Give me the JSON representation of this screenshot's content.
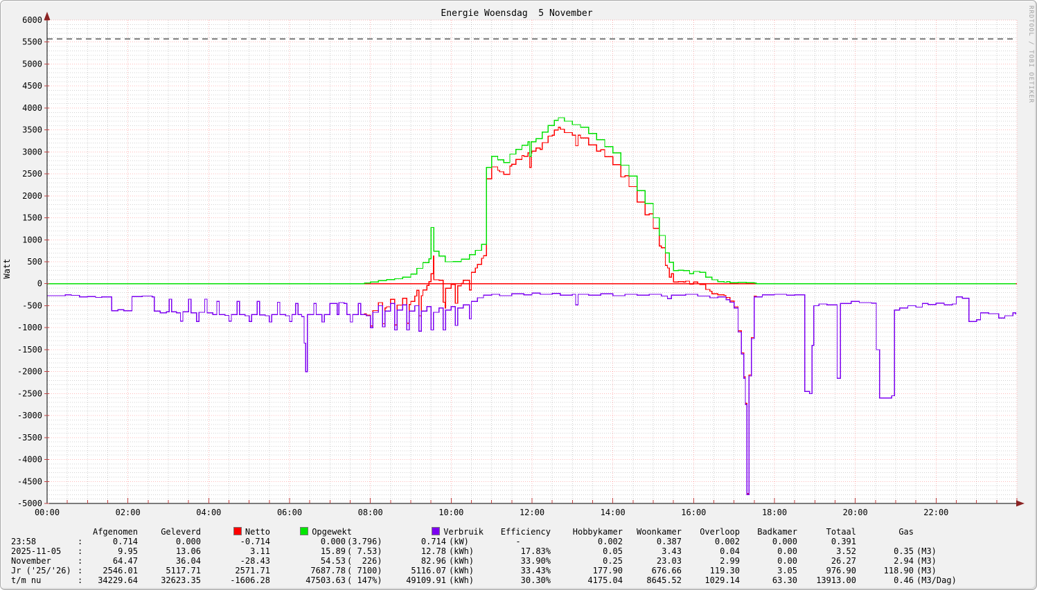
{
  "title": "Energie Woensdag  5 November",
  "watermark": "RRDTOOL / TOBI OETIKER",
  "chart_data": {
    "type": "line",
    "title": "Energie Woensdag  5 November",
    "xlabel": "",
    "ylabel": "Watt",
    "ylim": [
      -5000,
      6000
    ],
    "xlim_hours": [
      0,
      24
    ],
    "grid": true,
    "legend_position": "bottom",
    "y_tick_values": [
      -5000,
      -4500,
      -4000,
      -3500,
      -3000,
      -2500,
      -2000,
      -1500,
      -1000,
      -500,
      0,
      500,
      1000,
      1500,
      2000,
      2500,
      3000,
      3500,
      4000,
      4500,
      5000,
      5500,
      6000
    ],
    "x_tick_hours": [
      0,
      2,
      4,
      6,
      8,
      10,
      12,
      14,
      16,
      18,
      20,
      22
    ],
    "x_tick_labels": [
      "00:00",
      "02:00",
      "04:00",
      "06:00",
      "08:00",
      "10:00",
      "12:00",
      "14:00",
      "16:00",
      "18:00",
      "20:00",
      "22:00"
    ],
    "hrules": {
      "zero": {
        "value": 0,
        "color": "#ff0000"
      },
      "limit": {
        "value": 5570,
        "color": "#555555",
        "style": "dashed"
      }
    },
    "series": [
      {
        "name": "Opgewekt",
        "color": "#00e000",
        "render": "step",
        "points": [
          [
            0,
            0
          ],
          [
            7.8,
            0
          ],
          [
            7.85,
            15
          ],
          [
            8.0,
            40
          ],
          [
            8.2,
            70
          ],
          [
            8.4,
            95
          ],
          [
            8.6,
            115
          ],
          [
            8.8,
            150
          ],
          [
            9.0,
            220
          ],
          [
            9.15,
            350
          ],
          [
            9.3,
            480
          ],
          [
            9.45,
            570
          ],
          [
            9.5,
            1280
          ],
          [
            9.57,
            740
          ],
          [
            9.7,
            630
          ],
          [
            9.85,
            500
          ],
          [
            10.05,
            505
          ],
          [
            10.25,
            560
          ],
          [
            10.45,
            660
          ],
          [
            10.6,
            760
          ],
          [
            10.75,
            900
          ],
          [
            10.87,
            2650
          ],
          [
            11.0,
            2900
          ],
          [
            11.15,
            2820
          ],
          [
            11.3,
            2760
          ],
          [
            11.45,
            2950
          ],
          [
            11.6,
            3060
          ],
          [
            11.75,
            3150
          ],
          [
            11.9,
            3230
          ],
          [
            11.94,
            2900
          ],
          [
            11.98,
            3230
          ],
          [
            12.1,
            3300
          ],
          [
            12.25,
            3450
          ],
          [
            12.4,
            3600
          ],
          [
            12.55,
            3720
          ],
          [
            12.65,
            3780
          ],
          [
            12.8,
            3700
          ],
          [
            13.0,
            3620
          ],
          [
            13.2,
            3560
          ],
          [
            13.4,
            3420
          ],
          [
            13.6,
            3280
          ],
          [
            13.8,
            3120
          ],
          [
            14.0,
            2980
          ],
          [
            14.2,
            2700
          ],
          [
            14.4,
            2450
          ],
          [
            14.6,
            2120
          ],
          [
            14.8,
            1830
          ],
          [
            15.0,
            1500
          ],
          [
            15.15,
            1100
          ],
          [
            15.3,
            700
          ],
          [
            15.4,
            490
          ],
          [
            15.5,
            300
          ],
          [
            15.62,
            310
          ],
          [
            15.75,
            300
          ],
          [
            15.9,
            230
          ],
          [
            16.0,
            280
          ],
          [
            16.15,
            260
          ],
          [
            16.3,
            150
          ],
          [
            16.45,
            90
          ],
          [
            16.6,
            50
          ],
          [
            16.75,
            35
          ],
          [
            16.82,
            50
          ],
          [
            16.9,
            25
          ],
          [
            17.1,
            30
          ],
          [
            17.3,
            25
          ],
          [
            17.5,
            15
          ],
          [
            17.55,
            0
          ],
          [
            23.97,
            0
          ]
        ]
      },
      {
        "name": "Verbruik",
        "color": "#7c00f0",
        "render": "step",
        "points": [
          [
            0,
            -270
          ],
          [
            0.45,
            -250
          ],
          [
            0.6,
            -265
          ],
          [
            0.8,
            -300
          ],
          [
            1.0,
            -290
          ],
          [
            1.2,
            -310
          ],
          [
            1.35,
            -300
          ],
          [
            1.6,
            -615
          ],
          [
            1.75,
            -590
          ],
          [
            1.9,
            -615
          ],
          [
            2.1,
            -290
          ],
          [
            2.35,
            -280
          ],
          [
            2.6,
            -300
          ],
          [
            2.65,
            -620
          ],
          [
            2.8,
            -660
          ],
          [
            2.95,
            -640
          ],
          [
            3.02,
            -350
          ],
          [
            3.08,
            -640
          ],
          [
            3.2,
            -660
          ],
          [
            3.3,
            -850
          ],
          [
            3.36,
            -640
          ],
          [
            3.5,
            -350
          ],
          [
            3.56,
            -660
          ],
          [
            3.7,
            -860
          ],
          [
            3.76,
            -650
          ],
          [
            3.9,
            -350
          ],
          [
            3.96,
            -660
          ],
          [
            4.1,
            -700
          ],
          [
            4.2,
            -400
          ],
          [
            4.26,
            -700
          ],
          [
            4.4,
            -720
          ],
          [
            4.5,
            -850
          ],
          [
            4.56,
            -700
          ],
          [
            4.7,
            -400
          ],
          [
            4.76,
            -700
          ],
          [
            4.9,
            -730
          ],
          [
            5.0,
            -860
          ],
          [
            5.06,
            -700
          ],
          [
            5.2,
            -400
          ],
          [
            5.26,
            -710
          ],
          [
            5.4,
            -730
          ],
          [
            5.5,
            -870
          ],
          [
            5.56,
            -700
          ],
          [
            5.7,
            -420
          ],
          [
            5.76,
            -700
          ],
          [
            5.9,
            -730
          ],
          [
            6.0,
            -860
          ],
          [
            6.06,
            -700
          ],
          [
            6.15,
            -450
          ],
          [
            6.21,
            -700
          ],
          [
            6.3,
            -750
          ],
          [
            6.36,
            -1350
          ],
          [
            6.4,
            -2000
          ],
          [
            6.44,
            -700
          ],
          [
            6.6,
            -450
          ],
          [
            6.66,
            -700
          ],
          [
            6.8,
            -870
          ],
          [
            6.86,
            -700
          ],
          [
            7.0,
            -450
          ],
          [
            7.18,
            -700
          ],
          [
            7.22,
            -430
          ],
          [
            7.35,
            -450
          ],
          [
            7.42,
            -700
          ],
          [
            7.5,
            -870
          ],
          [
            7.56,
            -700
          ],
          [
            7.7,
            -450
          ],
          [
            7.76,
            -700
          ],
          [
            7.9,
            -730
          ],
          [
            8.0,
            -1000
          ],
          [
            8.06,
            -650
          ],
          [
            8.2,
            -500
          ],
          [
            8.3,
            -980
          ],
          [
            8.36,
            -620
          ],
          [
            8.5,
            -450
          ],
          [
            8.6,
            -1050
          ],
          [
            8.66,
            -600
          ],
          [
            8.8,
            -480
          ],
          [
            8.9,
            -1050
          ],
          [
            8.96,
            -620
          ],
          [
            9.1,
            -500
          ],
          [
            9.2,
            -1080
          ],
          [
            9.26,
            -620
          ],
          [
            9.4,
            -520
          ],
          [
            9.5,
            -1050
          ],
          [
            9.56,
            -650
          ],
          [
            9.7,
            -550
          ],
          [
            9.8,
            -1050
          ],
          [
            9.86,
            -600
          ],
          [
            10.0,
            -520
          ],
          [
            10.1,
            -950
          ],
          [
            10.16,
            -550
          ],
          [
            10.3,
            -480
          ],
          [
            10.45,
            -800
          ],
          [
            10.5,
            -400
          ],
          [
            10.65,
            -320
          ],
          [
            10.8,
            -260
          ],
          [
            11.0,
            -240
          ],
          [
            11.2,
            -270
          ],
          [
            11.5,
            -230
          ],
          [
            11.8,
            -250
          ],
          [
            12.0,
            -210
          ],
          [
            12.2,
            -240
          ],
          [
            12.5,
            -220
          ],
          [
            12.7,
            -260
          ],
          [
            13.0,
            -240
          ],
          [
            13.08,
            -480
          ],
          [
            13.14,
            -240
          ],
          [
            13.4,
            -260
          ],
          [
            13.7,
            -230
          ],
          [
            14.0,
            -270
          ],
          [
            14.3,
            -240
          ],
          [
            14.6,
            -260
          ],
          [
            14.9,
            -240
          ],
          [
            15.2,
            -280
          ],
          [
            15.35,
            -340
          ],
          [
            15.45,
            -260
          ],
          [
            15.8,
            -240
          ],
          [
            16.1,
            -280
          ],
          [
            16.4,
            -320
          ],
          [
            16.6,
            -300
          ],
          [
            16.8,
            -360
          ],
          [
            16.9,
            -420
          ],
          [
            17.0,
            -550
          ],
          [
            17.1,
            -1100
          ],
          [
            17.18,
            -1600
          ],
          [
            17.24,
            -2150
          ],
          [
            17.28,
            -2750
          ],
          [
            17.32,
            -4800
          ],
          [
            17.37,
            -2100
          ],
          [
            17.43,
            -1250
          ],
          [
            17.5,
            -300
          ],
          [
            17.7,
            -250
          ],
          [
            18.0,
            -240
          ],
          [
            18.3,
            -260
          ],
          [
            18.5,
            -250
          ],
          [
            18.75,
            -2450
          ],
          [
            18.87,
            -2500
          ],
          [
            18.93,
            -1400
          ],
          [
            18.97,
            -500
          ],
          [
            19.1,
            -460
          ],
          [
            19.3,
            -480
          ],
          [
            19.55,
            -2150
          ],
          [
            19.63,
            -450
          ],
          [
            19.9,
            -400
          ],
          [
            20.1,
            -430
          ],
          [
            20.4,
            -440
          ],
          [
            20.52,
            -1500
          ],
          [
            20.6,
            -2600
          ],
          [
            20.9,
            -2550
          ],
          [
            20.97,
            -600
          ],
          [
            21.1,
            -550
          ],
          [
            21.3,
            -500
          ],
          [
            21.5,
            -530
          ],
          [
            21.66,
            -450
          ],
          [
            21.8,
            -470
          ],
          [
            22.0,
            -440
          ],
          [
            22.2,
            -480
          ],
          [
            22.4,
            -460
          ],
          [
            22.5,
            -300
          ],
          [
            22.65,
            -330
          ],
          [
            22.81,
            -860
          ],
          [
            23.0,
            -820
          ],
          [
            23.1,
            -660
          ],
          [
            23.3,
            -680
          ],
          [
            23.55,
            -780
          ],
          [
            23.7,
            -730
          ],
          [
            23.9,
            -660
          ],
          [
            23.97,
            -700
          ]
        ]
      },
      {
        "name": "Netto",
        "color": "#ff0000",
        "render": "step",
        "derived": "Opgewekt + Verbruik"
      }
    ]
  },
  "table": {
    "headers": {
      "afgenomen": "Afgenomen",
      "geleverd": "Geleverd",
      "netto": "Netto",
      "opgewekt": "Opgewekt",
      "verbruik": "Verbruik",
      "efficiency": "Efficiency",
      "hobbykamer": "Hobbykamer",
      "woonkamer": "Woonkamer",
      "overloop": "Overloop",
      "badkamer": "Badkamer",
      "totaal": "Totaal",
      "gas": "Gas"
    },
    "legend_colors": {
      "netto": "#ff0000",
      "opgewekt": "#00e600",
      "verbruik": "#7c00f0"
    },
    "rows": [
      {
        "label": "23:58",
        "colon": ":",
        "afgenomen": "0.714",
        "geleverd": "0.000",
        "netto": "-0.714",
        "opgewekt": "0.000",
        "opgewekt_paren": "(3.796)",
        "verbruik": "0.714",
        "verbruik_unit": "(kW)",
        "efficiency": "-      ",
        "hobbykamer": "0.002",
        "woonkamer": "0.387",
        "overloop": "0.002",
        "badkamer": "0.000",
        "totaal": "0.391",
        "gas": "",
        "gas_unit": ""
      },
      {
        "label": "2025-11-05",
        "colon": ":",
        "afgenomen": "9.95",
        "geleverd": "13.06",
        "netto": "3.11",
        "opgewekt": "15.89",
        "opgewekt_paren": "( 7.53)",
        "verbruik": "12.78",
        "verbruik_unit": "(kWh)",
        "efficiency": "17.83%",
        "hobbykamer": "0.05",
        "woonkamer": "3.43",
        "overloop": "0.04",
        "badkamer": "0.00",
        "totaal": "3.52",
        "gas": "0.35",
        "gas_unit": "(M3)"
      },
      {
        "label": "November",
        "colon": ":",
        "afgenomen": "64.47",
        "geleverd": "36.04",
        "netto": "-28.43",
        "opgewekt": "54.53",
        "opgewekt_paren": "(  226)",
        "verbruik": "82.96",
        "verbruik_unit": "(kWh)",
        "efficiency": "33.90%",
        "hobbykamer": "0.25",
        "woonkamer": "23.03",
        "overloop": "2.99",
        "badkamer": "0.00",
        "totaal": "26.27",
        "gas": "2.94",
        "gas_unit": "(M3)"
      },
      {
        "label": "Jr ('25/'26)",
        "colon": ":",
        "afgenomen": "2546.01",
        "geleverd": "5117.71",
        "netto": "2571.71",
        "opgewekt": "7687.78",
        "opgewekt_paren": "( 7100)",
        "verbruik": "5116.07",
        "verbruik_unit": "(kWh)",
        "efficiency": "33.43%",
        "hobbykamer": "177.90",
        "woonkamer": "676.66",
        "overloop": "119.30",
        "badkamer": "3.05",
        "totaal": "976.90",
        "gas": "118.90",
        "gas_unit": "(M3)"
      },
      {
        "label": "t/m nu",
        "colon": ":",
        "afgenomen": "34229.64",
        "geleverd": "32623.35",
        "netto": "-1606.28",
        "opgewekt": "47503.63",
        "opgewekt_paren": "( 147%)",
        "verbruik": "49109.91",
        "verbruik_unit": "(kWh)",
        "efficiency": "30.30%",
        "hobbykamer": "4175.04",
        "woonkamer": "8645.52",
        "overloop": "1029.14",
        "badkamer": "63.30",
        "totaal": "13913.00",
        "gas": "0.46",
        "gas_unit": "(M3/Dag)"
      }
    ]
  }
}
